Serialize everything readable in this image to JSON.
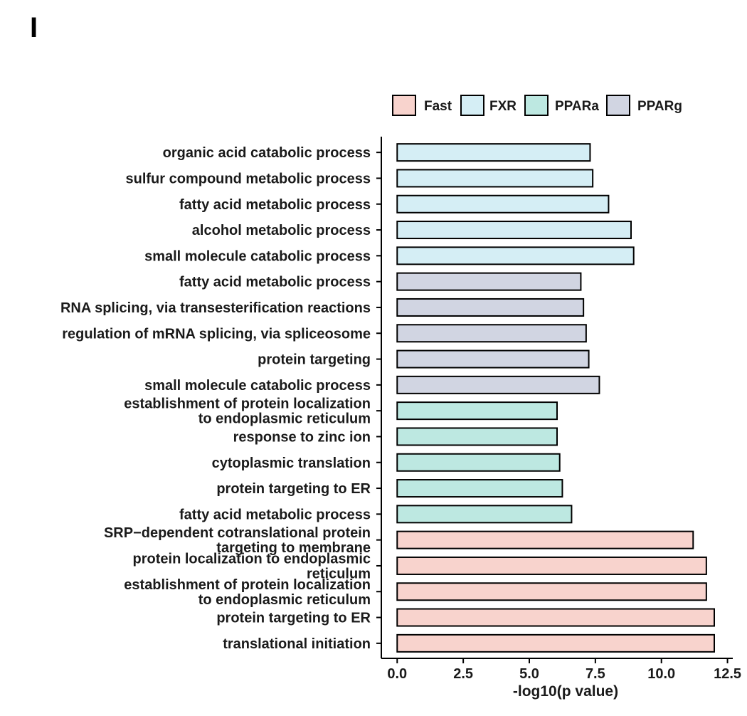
{
  "panel_label": "I",
  "chart_data": {
    "type": "bar",
    "orientation": "horizontal",
    "title": "",
    "xlabel": "-log10(p value)",
    "ylabel": "",
    "xlim": [
      -0.6,
      12.7
    ],
    "xticks": [
      0,
      2.5,
      5,
      7.5,
      10,
      12.5
    ],
    "xtick_labels": [
      "0.0",
      "2.5",
      "5.0",
      "7.5",
      "10.0",
      "12.5"
    ],
    "grid": false,
    "legend_position": "top",
    "legend": [
      {
        "name": "Fast",
        "color": "#f8d3cd"
      },
      {
        "name": "FXR",
        "color": "#d5eef5"
      },
      {
        "name": "PPARa",
        "color": "#bde8e1"
      },
      {
        "name": "PPARg",
        "color": "#d1d5e2"
      }
    ],
    "bars": [
      {
        "label": [
          "organic acid catabolic process"
        ],
        "value": 7.3,
        "group": "FXR"
      },
      {
        "label": [
          "sulfur compound metabolic process"
        ],
        "value": 7.4,
        "group": "FXR"
      },
      {
        "label": [
          "fatty acid metabolic process"
        ],
        "value": 8.0,
        "group": "FXR"
      },
      {
        "label": [
          "alcohol metabolic process"
        ],
        "value": 8.85,
        "group": "FXR"
      },
      {
        "label": [
          "small molecule catabolic process"
        ],
        "value": 8.95,
        "group": "FXR"
      },
      {
        "label": [
          "fatty acid metabolic process"
        ],
        "value": 6.95,
        "group": "PPARg"
      },
      {
        "label": [
          "RNA splicing, via transesterification reactions"
        ],
        "value": 7.05,
        "group": "PPARg"
      },
      {
        "label": [
          "regulation of mRNA splicing, via spliceosome"
        ],
        "value": 7.15,
        "group": "PPARg"
      },
      {
        "label": [
          "protein targeting"
        ],
        "value": 7.25,
        "group": "PPARg"
      },
      {
        "label": [
          "small molecule catabolic process"
        ],
        "value": 7.65,
        "group": "PPARg"
      },
      {
        "label": [
          "establishment of protein localization",
          "to endoplasmic reticulum"
        ],
        "value": 6.05,
        "group": "PPARa"
      },
      {
        "label": [
          "response to zinc ion"
        ],
        "value": 6.05,
        "group": "PPARa"
      },
      {
        "label": [
          "cytoplasmic translation"
        ],
        "value": 6.15,
        "group": "PPARa"
      },
      {
        "label": [
          "protein targeting to ER"
        ],
        "value": 6.25,
        "group": "PPARa"
      },
      {
        "label": [
          "fatty acid metabolic process"
        ],
        "value": 6.6,
        "group": "PPARa"
      },
      {
        "label": [
          "SRP−dependent cotranslational protein",
          "targeting to membrane"
        ],
        "value": 11.2,
        "group": "Fast"
      },
      {
        "label": [
          "protein localization to endoplasmic",
          "reticulum"
        ],
        "value": 11.7,
        "group": "Fast"
      },
      {
        "label": [
          "establishment of protein localization",
          "to endoplasmic reticulum"
        ],
        "value": 11.7,
        "group": "Fast"
      },
      {
        "label": [
          "protein targeting to ER"
        ],
        "value": 12.0,
        "group": "Fast"
      },
      {
        "label": [
          "translational initiation"
        ],
        "value": 12.0,
        "group": "Fast"
      }
    ]
  }
}
